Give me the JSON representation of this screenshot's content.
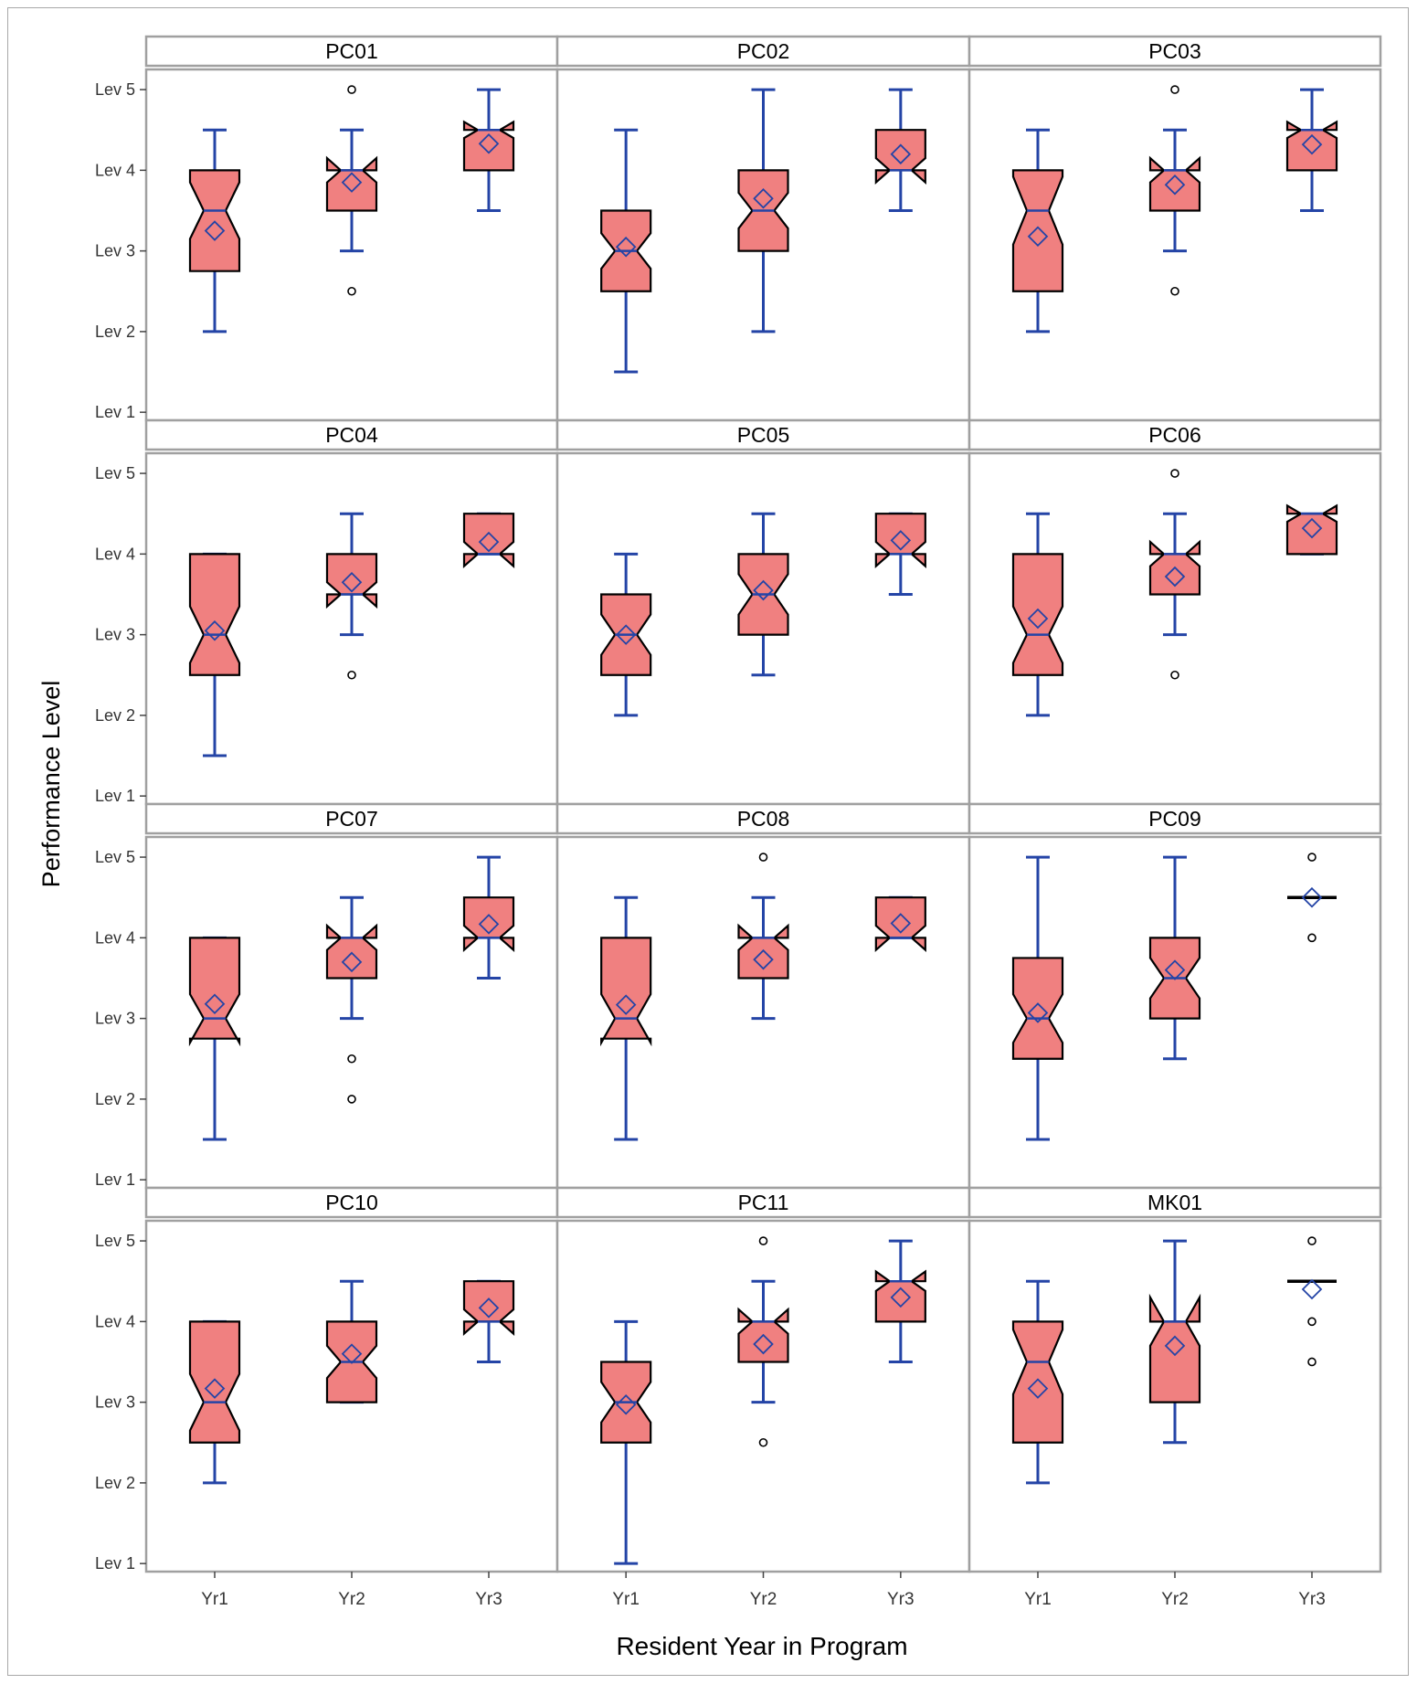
{
  "chart_data": {
    "type": "box",
    "layout": "panel grid, 4 rows x 3 columns, shared axes",
    "ylabel": "Performance Level",
    "xlabel": "Resident Year in Program",
    "categories": [
      "Yr1",
      "Yr2",
      "Yr3"
    ],
    "y_ticks": [
      {
        "value": 1,
        "label": "Lev 1"
      },
      {
        "value": 2,
        "label": "Lev 2"
      },
      {
        "value": 3,
        "label": "Lev 3"
      },
      {
        "value": 4,
        "label": "Lev 4"
      },
      {
        "value": 5,
        "label": "Lev 5"
      }
    ],
    "ylim": [
      0.9,
      5.25
    ],
    "colors": {
      "box_fill": "#f08080",
      "box_outline": "#000000",
      "whisker": "#2444a6",
      "median": "#2444a6",
      "mean_marker": "#2444a6",
      "outlier": "#000000",
      "panel_border": "#a0a0a0"
    },
    "grid": false,
    "panels": [
      {
        "title": "PC01",
        "boxes": [
          {
            "category": "Yr1",
            "whisker_low": 2,
            "q1": 2.75,
            "median": 3.5,
            "q3": 4,
            "whisker_high": 4.5,
            "mean": 3.25,
            "notch": 0.35,
            "outliers": []
          },
          {
            "category": "Yr2",
            "whisker_low": 3,
            "q1": 3.5,
            "median": 4,
            "q3": 4,
            "whisker_high": 4.5,
            "mean": 3.85,
            "notch": 0.15,
            "outliers": [
              2.5,
              5
            ]
          },
          {
            "category": "Yr3",
            "whisker_low": 3.5,
            "q1": 4,
            "median": 4.5,
            "q3": 4.5,
            "whisker_high": 5,
            "mean": 4.33,
            "notch": 0.1,
            "outliers": []
          }
        ]
      },
      {
        "title": "PC02",
        "boxes": [
          {
            "category": "Yr1",
            "whisker_low": 1.5,
            "q1": 2.5,
            "median": 3,
            "q3": 3.5,
            "whisker_high": 4.5,
            "mean": 3.05,
            "notch": 0.22,
            "outliers": []
          },
          {
            "category": "Yr2",
            "whisker_low": 2,
            "q1": 3,
            "median": 3.5,
            "q3": 4,
            "whisker_high": 5,
            "mean": 3.65,
            "notch": 0.22,
            "outliers": []
          },
          {
            "category": "Yr3",
            "whisker_low": 3.5,
            "q1": 4,
            "median": 4,
            "q3": 4.5,
            "whisker_high": 5,
            "mean": 4.2,
            "notch": 0.15,
            "outliers": []
          }
        ]
      },
      {
        "title": "PC03",
        "boxes": [
          {
            "category": "Yr1",
            "whisker_low": 2,
            "q1": 2.5,
            "median": 3.5,
            "q3": 4,
            "whisker_high": 4.5,
            "mean": 3.18,
            "notch": 0.42,
            "outliers": []
          },
          {
            "category": "Yr2",
            "whisker_low": 3,
            "q1": 3.5,
            "median": 4,
            "q3": 4,
            "whisker_high": 4.5,
            "mean": 3.82,
            "notch": 0.15,
            "outliers": [
              2.5,
              5
            ]
          },
          {
            "category": "Yr3",
            "whisker_low": 3.5,
            "q1": 4,
            "median": 4.5,
            "q3": 4.5,
            "whisker_high": 5,
            "mean": 4.32,
            "notch": 0.1,
            "outliers": []
          }
        ]
      },
      {
        "title": "PC04",
        "boxes": [
          {
            "category": "Yr1",
            "whisker_low": 1.5,
            "q1": 2.5,
            "median": 3,
            "q3": 4,
            "whisker_high": 4,
            "mean": 3.05,
            "notch": 0.35,
            "outliers": []
          },
          {
            "category": "Yr2",
            "whisker_low": 3,
            "q1": 3.5,
            "median": 3.5,
            "q3": 4,
            "whisker_high": 4.5,
            "mean": 3.65,
            "notch": 0.15,
            "outliers": [
              2.5
            ]
          },
          {
            "category": "Yr3",
            "whisker_low": 4,
            "q1": 4,
            "median": 4,
            "q3": 4.5,
            "whisker_high": 4.5,
            "mean": 4.15,
            "notch": 0.15,
            "outliers": []
          }
        ]
      },
      {
        "title": "PC05",
        "boxes": [
          {
            "category": "Yr1",
            "whisker_low": 2,
            "q1": 2.5,
            "median": 3,
            "q3": 3.5,
            "whisker_high": 4,
            "mean": 3,
            "notch": 0.25,
            "outliers": []
          },
          {
            "category": "Yr2",
            "whisker_low": 2.5,
            "q1": 3,
            "median": 3.5,
            "q3": 4,
            "whisker_high": 4.5,
            "mean": 3.55,
            "notch": 0.25,
            "outliers": []
          },
          {
            "category": "Yr3",
            "whisker_low": 3.5,
            "q1": 4,
            "median": 4,
            "q3": 4.5,
            "whisker_high": 4.5,
            "mean": 4.17,
            "notch": 0.15,
            "outliers": []
          }
        ]
      },
      {
        "title": "PC06",
        "boxes": [
          {
            "category": "Yr1",
            "whisker_low": 2,
            "q1": 2.5,
            "median": 3,
            "q3": 4,
            "whisker_high": 4.5,
            "mean": 3.2,
            "notch": 0.35,
            "outliers": []
          },
          {
            "category": "Yr2",
            "whisker_low": 3,
            "q1": 3.5,
            "median": 4,
            "q3": 4,
            "whisker_high": 4.5,
            "mean": 3.72,
            "notch": 0.15,
            "outliers": [
              2.5,
              5
            ]
          },
          {
            "category": "Yr3",
            "whisker_low": 4,
            "q1": 4,
            "median": 4.5,
            "q3": 4.5,
            "whisker_high": 4.5,
            "mean": 4.32,
            "notch": 0.1,
            "outliers": []
          }
        ]
      },
      {
        "title": "PC07",
        "boxes": [
          {
            "category": "Yr1",
            "whisker_low": 1.5,
            "q1": 2.75,
            "median": 3,
            "q3": 4,
            "whisker_high": 4,
            "mean": 3.18,
            "notch": 0.3,
            "outliers": []
          },
          {
            "category": "Yr2",
            "whisker_low": 3,
            "q1": 3.5,
            "median": 4,
            "q3": 4,
            "whisker_high": 4.5,
            "mean": 3.7,
            "notch": 0.15,
            "outliers": [
              2,
              2.5
            ]
          },
          {
            "category": "Yr3",
            "whisker_low": 3.5,
            "q1": 4,
            "median": 4,
            "q3": 4.5,
            "whisker_high": 5,
            "mean": 4.17,
            "notch": 0.15,
            "outliers": []
          }
        ]
      },
      {
        "title": "PC08",
        "boxes": [
          {
            "category": "Yr1",
            "whisker_low": 1.5,
            "q1": 2.75,
            "median": 3,
            "q3": 4,
            "whisker_high": 4.5,
            "mean": 3.17,
            "notch": 0.3,
            "outliers": []
          },
          {
            "category": "Yr2",
            "whisker_low": 3,
            "q1": 3.5,
            "median": 4,
            "q3": 4,
            "whisker_high": 4.5,
            "mean": 3.73,
            "notch": 0.15,
            "outliers": [
              5
            ]
          },
          {
            "category": "Yr3",
            "whisker_low": 4,
            "q1": 4,
            "median": 4,
            "q3": 4.5,
            "whisker_high": 4.5,
            "mean": 4.18,
            "notch": 0.15,
            "outliers": []
          }
        ]
      },
      {
        "title": "PC09",
        "boxes": [
          {
            "category": "Yr1",
            "whisker_low": 1.5,
            "q1": 2.5,
            "median": 3,
            "q3": 3.75,
            "whisker_high": 5,
            "mean": 3.07,
            "notch": 0.3,
            "outliers": []
          },
          {
            "category": "Yr2",
            "whisker_low": 2.5,
            "q1": 3,
            "median": 3.5,
            "q3": 4,
            "whisker_high": 5,
            "mean": 3.6,
            "notch": 0.25,
            "outliers": []
          },
          {
            "category": "Yr3",
            "whisker_low": 4.5,
            "q1": 4.5,
            "median": 4.5,
            "q3": 4.5,
            "whisker_high": 4.5,
            "mean": 4.5,
            "notch": 0,
            "outliers": [
              4,
              5
            ]
          }
        ]
      },
      {
        "title": "PC10",
        "boxes": [
          {
            "category": "Yr1",
            "whisker_low": 2,
            "q1": 2.5,
            "median": 3,
            "q3": 4,
            "whisker_high": 4,
            "mean": 3.17,
            "notch": 0.35,
            "outliers": []
          },
          {
            "category": "Yr2",
            "whisker_low": 3,
            "q1": 3,
            "median": 3.5,
            "q3": 4,
            "whisker_high": 4.5,
            "mean": 3.6,
            "notch": 0.2,
            "outliers": []
          },
          {
            "category": "Yr3",
            "whisker_low": 3.5,
            "q1": 4,
            "median": 4,
            "q3": 4.5,
            "whisker_high": 4.5,
            "mean": 4.17,
            "notch": 0.15,
            "outliers": []
          }
        ]
      },
      {
        "title": "PC11",
        "boxes": [
          {
            "category": "Yr1",
            "whisker_low": 1,
            "q1": 2.5,
            "median": 3,
            "q3": 3.5,
            "whisker_high": 4,
            "mean": 2.97,
            "notch": 0.25,
            "outliers": []
          },
          {
            "category": "Yr2",
            "whisker_low": 3,
            "q1": 3.5,
            "median": 4,
            "q3": 4,
            "whisker_high": 4.5,
            "mean": 3.72,
            "notch": 0.15,
            "outliers": [
              2.5,
              5
            ]
          },
          {
            "category": "Yr3",
            "whisker_low": 3.5,
            "q1": 4,
            "median": 4.5,
            "q3": 4.5,
            "whisker_high": 5,
            "mean": 4.3,
            "notch": 0.12,
            "outliers": []
          }
        ]
      },
      {
        "title": "MK01",
        "boxes": [
          {
            "category": "Yr1",
            "whisker_low": 2,
            "q1": 2.5,
            "median": 3.5,
            "q3": 4,
            "whisker_high": 4.5,
            "mean": 3.17,
            "notch": 0.4,
            "outliers": []
          },
          {
            "category": "Yr2",
            "whisker_low": 2.5,
            "q1": 3,
            "median": 4,
            "q3": 4,
            "whisker_high": 5,
            "mean": 3.7,
            "notch": 0.3,
            "outliers": []
          },
          {
            "category": "Yr3",
            "whisker_low": 4.5,
            "q1": 4.5,
            "median": 4.5,
            "q3": 4.5,
            "whisker_high": 4.5,
            "mean": 4.4,
            "notch": 0,
            "outliers": [
              3.5,
              4,
              5
            ]
          }
        ]
      }
    ]
  }
}
